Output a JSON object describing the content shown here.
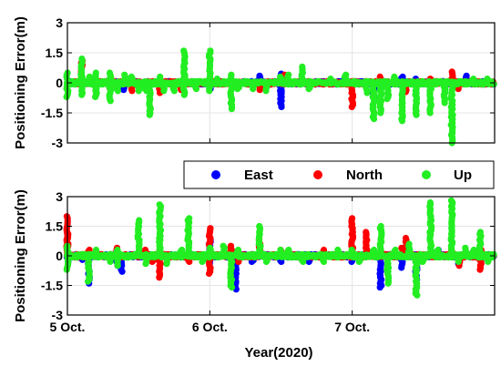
{
  "chart_data": [
    {
      "type": "scatter",
      "panel": "top",
      "ylabel": "Positioning Error(m)",
      "ylim": [
        -3,
        3
      ],
      "yticks": [
        3,
        1.5,
        0,
        -1.5,
        -3
      ],
      "ytick_labels": [
        "3",
        "1.5",
        "0",
        "-1.5",
        "-3"
      ],
      "xlim": [
        5.0,
        8.0
      ],
      "xticks": [
        5,
        6,
        7
      ],
      "xtick_labels": [
        "",
        "",
        ""
      ],
      "grid": true,
      "baseline_noise": 0.08,
      "series": [
        {
          "name": "East",
          "color": "#0000ff",
          "spikes": [
            [
              5.4,
              -0.35
            ],
            [
              6.0,
              -0.3
            ],
            [
              6.35,
              0.35
            ],
            [
              6.5,
              0.45
            ],
            [
              6.5,
              -0.6
            ],
            [
              6.5,
              -1.2
            ],
            [
              7.15,
              -0.8
            ],
            [
              7.35,
              0.3
            ],
            [
              7.45,
              0.2
            ],
            [
              7.8,
              0.35
            ]
          ]
        },
        {
          "name": "North",
          "color": "#ff0000",
          "spikes": [
            [
              5.1,
              1.1
            ],
            [
              5.3,
              -0.35
            ],
            [
              5.45,
              -0.4
            ],
            [
              5.55,
              -0.3
            ],
            [
              5.65,
              -0.5
            ],
            [
              5.8,
              -0.35
            ],
            [
              6.35,
              -0.35
            ],
            [
              6.52,
              0.4
            ],
            [
              7.0,
              -1.2
            ],
            [
              7.2,
              0.3
            ],
            [
              7.38,
              -0.45
            ],
            [
              7.55,
              0.2
            ],
            [
              7.7,
              0.55
            ],
            [
              7.75,
              -0.3
            ]
          ]
        },
        {
          "name": "Up",
          "color": "#22ee22",
          "spikes": [
            [
              5.0,
              0.5
            ],
            [
              5.0,
              -0.7
            ],
            [
              5.1,
              1.2
            ],
            [
              5.1,
              -0.6
            ],
            [
              5.15,
              0.3
            ],
            [
              5.2,
              0.5
            ],
            [
              5.2,
              -0.7
            ],
            [
              5.3,
              0.5
            ],
            [
              5.3,
              -0.9
            ],
            [
              5.35,
              -0.4
            ],
            [
              5.4,
              0.4
            ],
            [
              5.45,
              0.3
            ],
            [
              5.5,
              -0.4
            ],
            [
              5.55,
              -0.4
            ],
            [
              5.58,
              -1.6
            ],
            [
              5.65,
              0.3
            ],
            [
              5.68,
              -0.4
            ],
            [
              5.75,
              -0.4
            ],
            [
              5.82,
              0.3
            ],
            [
              5.82,
              1.6
            ],
            [
              5.82,
              -0.6
            ],
            [
              5.9,
              -0.3
            ],
            [
              6.0,
              1.6
            ],
            [
              6.0,
              -0.4
            ],
            [
              6.05,
              0.2
            ],
            [
              6.15,
              0.4
            ],
            [
              6.15,
              -1.3
            ],
            [
              6.2,
              -0.3
            ],
            [
              6.3,
              -0.3
            ],
            [
              6.4,
              -0.4
            ],
            [
              6.5,
              0.3
            ],
            [
              6.55,
              0.4
            ],
            [
              6.65,
              0.8
            ],
            [
              6.7,
              -0.3
            ],
            [
              6.85,
              0.2
            ],
            [
              6.95,
              0.4
            ],
            [
              7.1,
              -0.5
            ],
            [
              7.15,
              -1.8
            ],
            [
              7.2,
              -1.5
            ],
            [
              7.25,
              -0.8
            ],
            [
              7.3,
              0.3
            ],
            [
              7.35,
              -1.9
            ],
            [
              7.45,
              -1.6
            ],
            [
              7.55,
              -1.5
            ],
            [
              7.65,
              -1.0
            ],
            [
              7.7,
              -3.0
            ],
            [
              7.85,
              0.2
            ],
            [
              7.95,
              0.2
            ]
          ]
        }
      ]
    },
    {
      "type": "scatter",
      "panel": "bottom",
      "xlabel": "Year(2020)",
      "ylabel": "Positioning Error(m)",
      "ylim": [
        -3,
        3
      ],
      "yticks": [
        3,
        1.5,
        0,
        -1.5,
        -3
      ],
      "ytick_labels": [
        "3",
        "1.5",
        "0",
        "-1.5",
        "-3"
      ],
      "xlim": [
        5.0,
        8.0
      ],
      "xticks": [
        5,
        6,
        7
      ],
      "xtick_labels": [
        "5 Oct.",
        "6 Oct.",
        "7 Oct."
      ],
      "grid": true,
      "baseline_noise": 0.08,
      "legend": {
        "position": "top",
        "entries": [
          "East",
          "North",
          "Up"
        ]
      },
      "series": [
        {
          "name": "East",
          "color": "#0000ff",
          "spikes": [
            [
              5.0,
              -0.3
            ],
            [
              5.1,
              -0.2
            ],
            [
              5.15,
              -1.4
            ],
            [
              5.35,
              -0.5
            ],
            [
              5.38,
              -0.8
            ],
            [
              6.0,
              0.8
            ],
            [
              6.0,
              -0.4
            ],
            [
              6.18,
              -1.7
            ],
            [
              6.18,
              -0.9
            ],
            [
              6.3,
              -0.3
            ],
            [
              6.5,
              -0.3
            ],
            [
              6.7,
              -0.3
            ],
            [
              7.0,
              -0.3
            ],
            [
              7.2,
              -1.6
            ],
            [
              7.35,
              -0.6
            ],
            [
              7.45,
              -1.2
            ],
            [
              7.6,
              0.3
            ],
            [
              7.75,
              -0.4
            ],
            [
              7.9,
              -0.3
            ]
          ]
        },
        {
          "name": "North",
          "color": "#ff0000",
          "spikes": [
            [
              5.0,
              2.0
            ],
            [
              5.0,
              1.2
            ],
            [
              5.15,
              0.3
            ],
            [
              5.35,
              0.4
            ],
            [
              5.55,
              0.3
            ],
            [
              5.6,
              -0.3
            ],
            [
              5.65,
              -1.1
            ],
            [
              5.85,
              -0.3
            ],
            [
              6.0,
              1.4
            ],
            [
              6.0,
              -0.9
            ],
            [
              6.15,
              0.5
            ],
            [
              6.2,
              -0.3
            ],
            [
              6.35,
              0.8
            ],
            [
              6.5,
              0.3
            ],
            [
              6.8,
              0.3
            ],
            [
              7.0,
              1.9
            ],
            [
              7.1,
              1.2
            ],
            [
              7.2,
              0.3
            ],
            [
              7.35,
              0.4
            ],
            [
              7.38,
              0.9
            ],
            [
              7.45,
              -0.3
            ],
            [
              7.7,
              0.3
            ],
            [
              7.75,
              -0.5
            ],
            [
              7.9,
              0.3
            ],
            [
              7.9,
              -0.7
            ]
          ]
        },
        {
          "name": "Up",
          "color": "#22ee22",
          "spikes": [
            [
              5.0,
              0.5
            ],
            [
              5.0,
              -0.7
            ],
            [
              5.15,
              -1.3
            ],
            [
              5.2,
              0.3
            ],
            [
              5.3,
              -0.3
            ],
            [
              5.35,
              -0.5
            ],
            [
              5.35,
              0.3
            ],
            [
              5.5,
              1.8
            ],
            [
              5.55,
              -0.4
            ],
            [
              5.65,
              0.3
            ],
            [
              5.65,
              2.6
            ],
            [
              5.7,
              -0.4
            ],
            [
              5.8,
              0.3
            ],
            [
              5.85,
              1.9
            ],
            [
              5.95,
              -0.3
            ],
            [
              6.0,
              0.4
            ],
            [
              6.1,
              0.5
            ],
            [
              6.15,
              -1.6
            ],
            [
              6.2,
              0.3
            ],
            [
              6.35,
              1.5
            ],
            [
              6.4,
              -0.3
            ],
            [
              6.5,
              0.3
            ],
            [
              6.55,
              0.3
            ],
            [
              6.65,
              -0.3
            ],
            [
              6.8,
              -0.3
            ],
            [
              6.9,
              0.3
            ],
            [
              7.0,
              0.3
            ],
            [
              7.05,
              -0.3
            ],
            [
              7.15,
              0.3
            ],
            [
              7.2,
              1.5
            ],
            [
              7.25,
              -1.4
            ],
            [
              7.3,
              0.3
            ],
            [
              7.4,
              0.6
            ],
            [
              7.45,
              -2.0
            ],
            [
              7.5,
              -0.3
            ],
            [
              7.55,
              2.7
            ],
            [
              7.6,
              0.3
            ],
            [
              7.7,
              2.8
            ],
            [
              7.75,
              -0.3
            ],
            [
              7.8,
              0.4
            ],
            [
              7.85,
              0.3
            ],
            [
              7.9,
              1.2
            ],
            [
              7.95,
              -0.3
            ]
          ]
        }
      ]
    }
  ]
}
